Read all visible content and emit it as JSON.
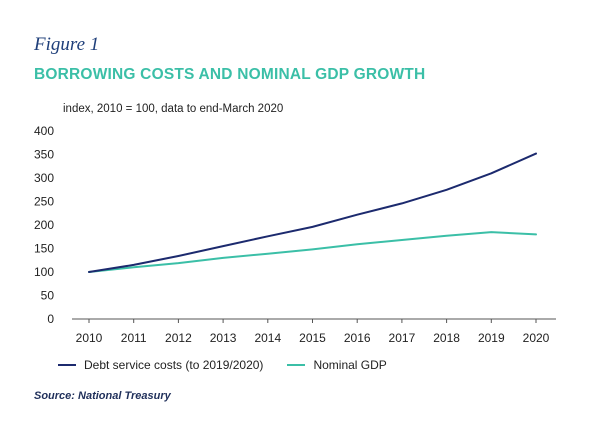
{
  "figure_label": "Figure 1",
  "chart_data": {
    "type": "line",
    "title": "BORROWING COSTS AND NOMINAL GDP GROWTH",
    "subtitle": "index, 2010 = 100, data to end-March 2020",
    "xlabel": "",
    "ylabel": "",
    "x": [
      "2010",
      "2011",
      "2012",
      "2013",
      "2014",
      "2015",
      "2016",
      "2017",
      "2018",
      "2019",
      "2020"
    ],
    "ylim": [
      0,
      400
    ],
    "yticks": [
      0,
      50,
      100,
      150,
      200,
      250,
      300,
      350,
      400
    ],
    "grid": false,
    "legend_position": "bottom",
    "series": [
      {
        "name": "Debt service costs (to 2019/2020)",
        "color": "#1c2a6e",
        "values": [
          100,
          115,
          134,
          155,
          176,
          196,
          222,
          246,
          275,
          310,
          352
        ]
      },
      {
        "name": "Nominal GDP",
        "color": "#3bbfa7",
        "values": [
          100,
          110,
          119,
          130,
          139,
          148,
          159,
          168,
          177,
          185,
          180
        ]
      }
    ]
  },
  "source": "Source: National Treasury"
}
